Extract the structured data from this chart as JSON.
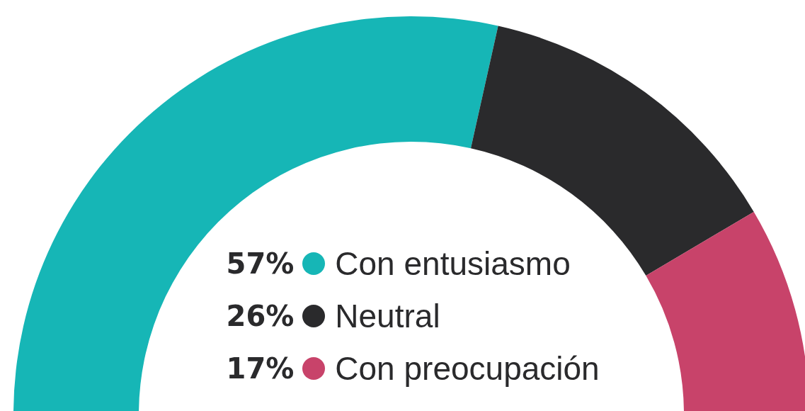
{
  "chart_data": {
    "type": "donut",
    "categories": [
      "Con entusiasmo",
      "Neutral",
      "Con preocupación"
    ],
    "values": [
      57,
      26,
      17
    ],
    "value_labels": [
      "57%",
      "26%",
      "17%"
    ],
    "colors": [
      "#16b6b6",
      "#2a2a2c",
      "#c8436a"
    ],
    "legend": "bottom"
  }
}
